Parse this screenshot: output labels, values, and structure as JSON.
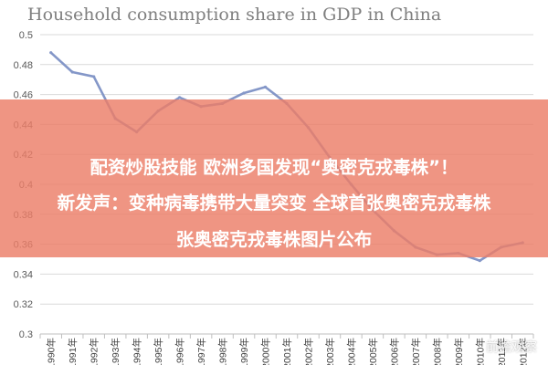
{
  "chart_data": {
    "type": "line",
    "title": "Household consumption share in GDP in China",
    "xlabel": "",
    "ylabel": "",
    "x": [
      "1990年",
      "1991年",
      "1992年",
      "1993年",
      "1994年",
      "1995年",
      "1996年",
      "1997年",
      "1998年",
      "1999年",
      "2000年",
      "2001年",
      "2002年",
      "2003年",
      "2004年",
      "2005年",
      "2006年",
      "2007年",
      "2008年",
      "2009年",
      "2010年",
      "2011年",
      "2012年"
    ],
    "series": [
      {
        "values": [
          0.488,
          0.475,
          0.472,
          0.444,
          0.435,
          0.449,
          0.458,
          0.452,
          0.454,
          0.461,
          0.465,
          0.454,
          0.438,
          0.418,
          0.4,
          0.383,
          0.369,
          0.358,
          0.353,
          0.354,
          0.349,
          0.358,
          0.361
        ]
      }
    ],
    "ylim": [
      0.3,
      0.5
    ],
    "yticks": [
      "0.3",
      "0.32",
      "0.34",
      "0.36",
      "0.38",
      "0.4",
      "0.42",
      "0.44",
      "0.46",
      "0.48",
      "0.5"
    ],
    "grid": true,
    "line_color": "#8497c8"
  },
  "overlay": {
    "line1": "配资炒股技能 欧洲多国发现“奥密克戎毒株”！",
    "line2": "新发声：变种病毒携带大量突变 全球首张奥密克戎毒株",
    "line3": "张奥密克戎毒株图片公布",
    "banner_color": "#ec7e68"
  },
  "watermark": "前瞻观察"
}
